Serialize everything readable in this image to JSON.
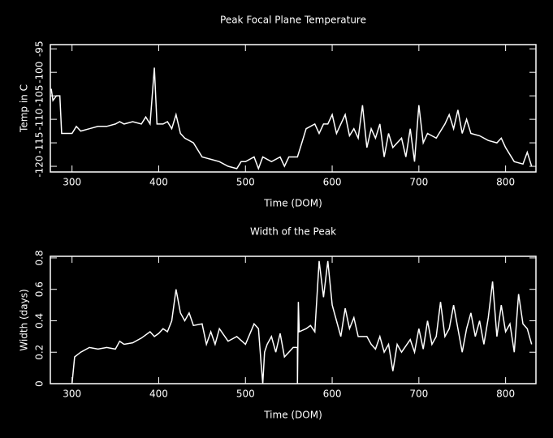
{
  "chart_data": [
    {
      "type": "line",
      "title": "Peak Focal Plane Temperature",
      "xlabel": "Time (DOM)",
      "ylabel": "Temp in C",
      "color": "#ffffff",
      "x": [
        276,
        278,
        282,
        286,
        288,
        300,
        305,
        310,
        320,
        330,
        340,
        350,
        355,
        360,
        370,
        380,
        385,
        390,
        395,
        398,
        405,
        410,
        415,
        420,
        425,
        430,
        440,
        450,
        460,
        470,
        480,
        490,
        495,
        500,
        510,
        515,
        520,
        530,
        540,
        545,
        550,
        560,
        565,
        570,
        580,
        585,
        590,
        595,
        600,
        605,
        610,
        615,
        620,
        625,
        630,
        635,
        640,
        645,
        650,
        655,
        660,
        665,
        670,
        675,
        680,
        685,
        690,
        695,
        700,
        705,
        710,
        720,
        730,
        735,
        740,
        745,
        750,
        755,
        760,
        770,
        780,
        790,
        795,
        800,
        810,
        820,
        825,
        830
      ],
      "values": [
        -103.5,
        -106,
        -105,
        -105,
        -113,
        -113,
        -111.5,
        -112.5,
        -112,
        -111.5,
        -111.5,
        -111,
        -110.5,
        -111,
        -110.5,
        -111,
        -109.5,
        -111,
        -99,
        -111,
        -111,
        -110.5,
        -112,
        -109,
        -113,
        -114,
        -115,
        -118,
        -118.5,
        -119,
        -120,
        -120.5,
        -119,
        -119,
        -118,
        -120.5,
        -118,
        -119,
        -118,
        -120,
        -118,
        -118,
        -115,
        -112,
        -111,
        -113,
        -111,
        -111,
        -109,
        -113,
        -111,
        -109,
        -113.5,
        -112,
        -114,
        -107,
        -116,
        -112,
        -114,
        -111,
        -118,
        -113,
        -116,
        -115,
        -114,
        -118,
        -112,
        -119,
        -107,
        -115,
        -113,
        -114,
        -111,
        -109,
        -112,
        -108,
        -113,
        -110,
        -113,
        -113.5,
        -114.5,
        -115,
        -114,
        -116,
        -119,
        -119.5,
        -117,
        -120
      ],
      "xlim": [
        275,
        835
      ],
      "ylim": [
        -121.2,
        -94.1
      ],
      "xticks": [
        300,
        400,
        500,
        600,
        700,
        800
      ],
      "yticks": [
        -120,
        -115,
        -110,
        -105,
        -100,
        -95
      ]
    },
    {
      "type": "line",
      "title": "Width of the Peak",
      "xlabel": "Time (DOM)",
      "ylabel": "Width (days)",
      "color": "#ffffff",
      "x": [
        300,
        303,
        310,
        320,
        330,
        340,
        350,
        355,
        360,
        370,
        380,
        390,
        395,
        400,
        405,
        410,
        415,
        420,
        425,
        430,
        435,
        440,
        450,
        455,
        460,
        465,
        470,
        480,
        490,
        500,
        510,
        515,
        518,
        520,
        522,
        525,
        530,
        535,
        540,
        545,
        550,
        555,
        560,
        560,
        561,
        562,
        570,
        575,
        580,
        585,
        590,
        595,
        600,
        605,
        610,
        615,
        620,
        625,
        630,
        640,
        645,
        650,
        655,
        660,
        665,
        670,
        675,
        680,
        690,
        695,
        700,
        705,
        710,
        715,
        720,
        725,
        730,
        735,
        740,
        745,
        750,
        755,
        760,
        765,
        770,
        775,
        780,
        785,
        790,
        795,
        800,
        805,
        810,
        815,
        820,
        825,
        830
      ],
      "values": [
        0,
        0.17,
        0.2,
        0.23,
        0.22,
        0.23,
        0.22,
        0.27,
        0.25,
        0.26,
        0.29,
        0.33,
        0.3,
        0.32,
        0.35,
        0.33,
        0.4,
        0.6,
        0.45,
        0.4,
        0.45,
        0.37,
        0.38,
        0.25,
        0.33,
        0.25,
        0.35,
        0.27,
        0.3,
        0.25,
        0.38,
        0.35,
        0.13,
        0,
        0.2,
        0.25,
        0.3,
        0.2,
        0.32,
        0.17,
        0.2,
        0.23,
        0.23,
        0,
        0.52,
        0.33,
        0.35,
        0.37,
        0.33,
        0.78,
        0.55,
        0.78,
        0.5,
        0.4,
        0.3,
        0.48,
        0.35,
        0.42,
        0.3,
        0.3,
        0.25,
        0.22,
        0.3,
        0.2,
        0.25,
        0.08,
        0.25,
        0.2,
        0.28,
        0.2,
        0.35,
        0.22,
        0.4,
        0.25,
        0.3,
        0.52,
        0.3,
        0.35,
        0.5,
        0.35,
        0.2,
        0.35,
        0.45,
        0.3,
        0.4,
        0.25,
        0.42,
        0.65,
        0.3,
        0.5,
        0.33,
        0.38,
        0.2,
        0.57,
        0.38,
        0.35,
        0.25
      ],
      "xlim": [
        275,
        835
      ],
      "ylim": [
        0,
        0.81
      ],
      "xticks": [
        300,
        400,
        500,
        600,
        700,
        800
      ],
      "yticks": [
        0,
        0.2,
        0.4,
        0.6,
        0.8
      ]
    }
  ]
}
